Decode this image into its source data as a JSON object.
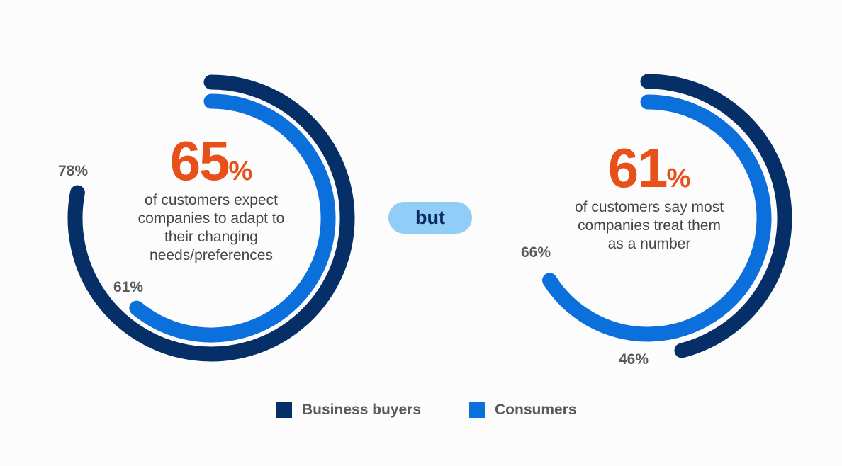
{
  "colors": {
    "business_buyers": "#052f66",
    "consumers": "#0b6fdc",
    "highlight": "#e8501a",
    "pill": "#90cdf7",
    "pill_text": "#0a2960"
  },
  "connector": {
    "label": "but"
  },
  "legend": [
    {
      "label": "Business buyers",
      "color": "#052f66"
    },
    {
      "label": "Consumers",
      "color": "#0b6fdc"
    }
  ],
  "chart_data": [
    {
      "type": "pie",
      "style": "radial-arc",
      "headline": {
        "value": "65",
        "unit": "%"
      },
      "text": "of customers expect companies to adapt to their changing needs/preferences",
      "series": [
        {
          "name": "Business buyers",
          "value": 78,
          "label": "78%"
        },
        {
          "name": "Consumers",
          "value": 61,
          "label": "61%"
        }
      ]
    },
    {
      "type": "pie",
      "style": "radial-arc",
      "headline": {
        "value": "61",
        "unit": "%"
      },
      "text": "of customers say most companies treat them as a number",
      "series": [
        {
          "name": "Business buyers",
          "value": 46,
          "label": "46%"
        },
        {
          "name": "Consumers",
          "value": 66,
          "label": "66%"
        }
      ]
    }
  ]
}
